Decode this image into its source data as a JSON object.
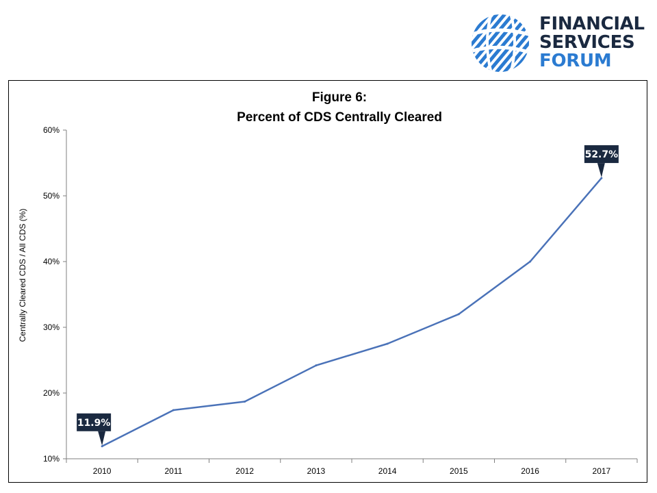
{
  "logo": {
    "lines": [
      "FINANCIAL",
      "SERVICES",
      "FORUM"
    ],
    "dark_color": "#1a2940",
    "accent_color": "#2b7bd1"
  },
  "chart_data": {
    "type": "line",
    "title": "Figure 6:",
    "subtitle": "Percent of CDS Centrally Cleared",
    "xlabel": "",
    "ylabel": "Centrally Cleared CDS / All CDS (%)",
    "x": [
      "2010",
      "2011",
      "2012",
      "2013",
      "2014",
      "2015",
      "2016",
      "2017"
    ],
    "series": [
      {
        "values": [
          11.9,
          17.4,
          18.7,
          24.2,
          27.5,
          32.0,
          40.0,
          52.7
        ],
        "color": "#4a72b8"
      }
    ],
    "ylim": [
      10,
      60
    ],
    "yticks": [
      10,
      20,
      30,
      40,
      50,
      60
    ],
    "ytick_labels": [
      "10%",
      "20%",
      "30%",
      "40%",
      "50%",
      "60%"
    ],
    "grid": false,
    "legend": "none",
    "annotations": [
      {
        "index": 0,
        "text": "11.9%"
      },
      {
        "index": 7,
        "text": "52.7%"
      }
    ],
    "annotation_color": "#1a2940"
  }
}
